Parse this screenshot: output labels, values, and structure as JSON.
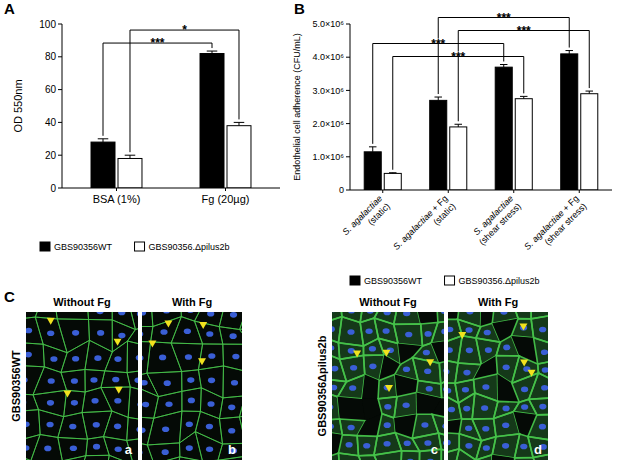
{
  "panel_labels": [
    "A",
    "B"
  ],
  "chart_data": [
    {
      "type": "bar",
      "y_label": "OD 550nm",
      "categories": [
        "BSA (1%)",
        "Fg (20µg)"
      ],
      "series": [
        {
          "name": "GBS90356WT",
          "color": "#000000",
          "values": [
            28,
            82
          ],
          "errors": [
            2,
            1.5
          ]
        },
        {
          "name": "GBS90356.Δpilus2b",
          "color": "#ffffff",
          "values": [
            18,
            38
          ],
          "errors": [
            2,
            2
          ]
        }
      ],
      "ylim": [
        0,
        100
      ],
      "yticks": [
        0,
        20,
        40,
        60,
        80,
        100
      ],
      "legend": "bottom",
      "annotations": [
        {
          "text": "***",
          "from": {
            "series": 0,
            "category": 0
          },
          "to": {
            "series": 0,
            "category": 1
          }
        },
        {
          "text": "*",
          "from": {
            "series": 1,
            "category": 0
          },
          "to": {
            "series": 1,
            "category": 1
          }
        }
      ]
    },
    {
      "type": "bar",
      "y_label": "Endothelial cell adherence  (CFU/mL)",
      "categories": [
        "S. agalactiae (static)",
        "S. agalactiae + Fg (static)",
        "S. agalactiae (shear stress)",
        "S. agalactiae + Fg (shear stress)"
      ],
      "series": [
        {
          "name": "GBS90356WT",
          "color": "#000000",
          "values": [
            1150000,
            2700000,
            3700000,
            4100000
          ],
          "errors": [
            150000,
            100000,
            80000,
            100000
          ]
        },
        {
          "name": "GBS90356.Δpilus2b",
          "color": "#ffffff",
          "values": [
            500000,
            1900000,
            2750000,
            2900000
          ],
          "errors": [
            20000,
            80000,
            70000,
            80000
          ]
        }
      ],
      "ylim": [
        0,
        5000000
      ],
      "yticks": [
        0,
        {
          "value": 1000000,
          "label": "1.0×10⁶"
        },
        {
          "value": 2000000,
          "label": "2.0×10⁶"
        },
        {
          "value": 3000000,
          "label": "3.0×10⁶"
        },
        {
          "value": 4000000,
          "label": "4.0×10⁶"
        },
        {
          "value": 5000000,
          "label": "5.0×10⁶"
        }
      ],
      "legend": "bottom",
      "annotations": [
        {
          "text": "***",
          "from": {
            "series": 1,
            "category": 0
          },
          "to": {
            "series": 1,
            "category": 2
          }
        },
        {
          "text": "***",
          "from": {
            "series": 0,
            "category": 0
          },
          "to": {
            "series": 0,
            "category": 2
          }
        },
        {
          "text": "***",
          "from": {
            "series": 1,
            "category": 1
          },
          "to": {
            "series": 1,
            "category": 3
          }
        },
        {
          "text": "***",
          "from": {
            "series": 0,
            "category": 1
          },
          "to": {
            "series": 0,
            "category": 3
          }
        }
      ]
    }
  ],
  "panel_c": {
    "label": "C",
    "columns": [
      "Without Fg",
      "With Fg"
    ],
    "rows": [
      {
        "label": "GBS90356WT",
        "tiles": [
          "a",
          "b"
        ]
      },
      {
        "label": "GBS90356Δpilus2b",
        "tiles": [
          "c",
          "d"
        ]
      }
    ]
  }
}
